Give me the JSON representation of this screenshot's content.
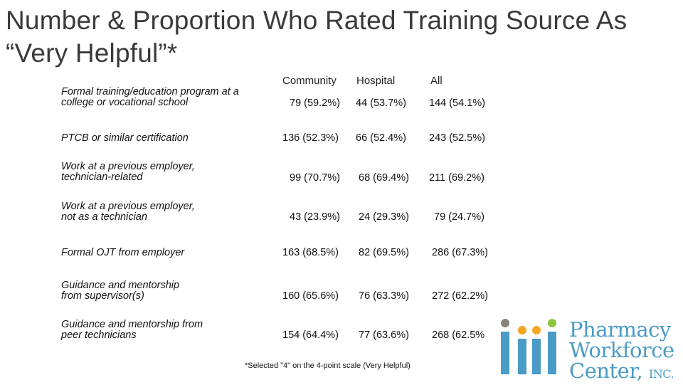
{
  "title": "Number & Proportion Who Rated Training Source As “Very Helpful”*",
  "columns": [
    "Community",
    "Hospital",
    "All"
  ],
  "rows": [
    {
      "label": [
        "Formal training/education program at a",
        "college or vocational school"
      ],
      "community": "79 (59.2%)",
      "hospital": "44 (53.7%)",
      "all": "144 (54.1%)"
    },
    {
      "label": [
        "PTCB or similar certification"
      ],
      "community": "136 (52.3%)",
      "hospital": "66 (52.4%)",
      "all": "243 (52.5%)"
    },
    {
      "label": [
        "Work at a previous employer,",
        "technician-related"
      ],
      "community": "99 (70.7%)",
      "hospital": "68 (69.4%)",
      "all": "211 (69.2%)"
    },
    {
      "label": [
        "Work at a previous employer,",
        "not as a technician"
      ],
      "community": "43 (23.9%)",
      "hospital": "24 (29.3%)",
      "all": "79 (24.7%)"
    },
    {
      "label": [
        "Formal OJT from employer"
      ],
      "community": "163 (68.5%)",
      "hospital": "82 (69.5%)",
      "all": "286 (67.3%)"
    },
    {
      "label": [
        "Guidance and mentorship",
        "from supervisor(s)"
      ],
      "community": "160 (65.6%)",
      "hospital": "76 (63.3%)",
      "all": "272 (62.2%)"
    },
    {
      "label": [
        "Guidance and mentorship from",
        "peer technicians"
      ],
      "community": "154 (64.4%)",
      "hospital": "77 (63.6%)",
      "all": "268 (62.5%"
    }
  ],
  "footnote": "*Selected \"4\" on the 4-point scale (Very Helpful)",
  "logo": {
    "line1": "Pharmacy",
    "line2": "Workforce",
    "line3": "Center,",
    "line3_suffix": "INC.",
    "colors": {
      "blue": "#4a9bc6",
      "green": "#8cc63f",
      "orange": "#f5a623",
      "gray": "#8a8178"
    }
  }
}
